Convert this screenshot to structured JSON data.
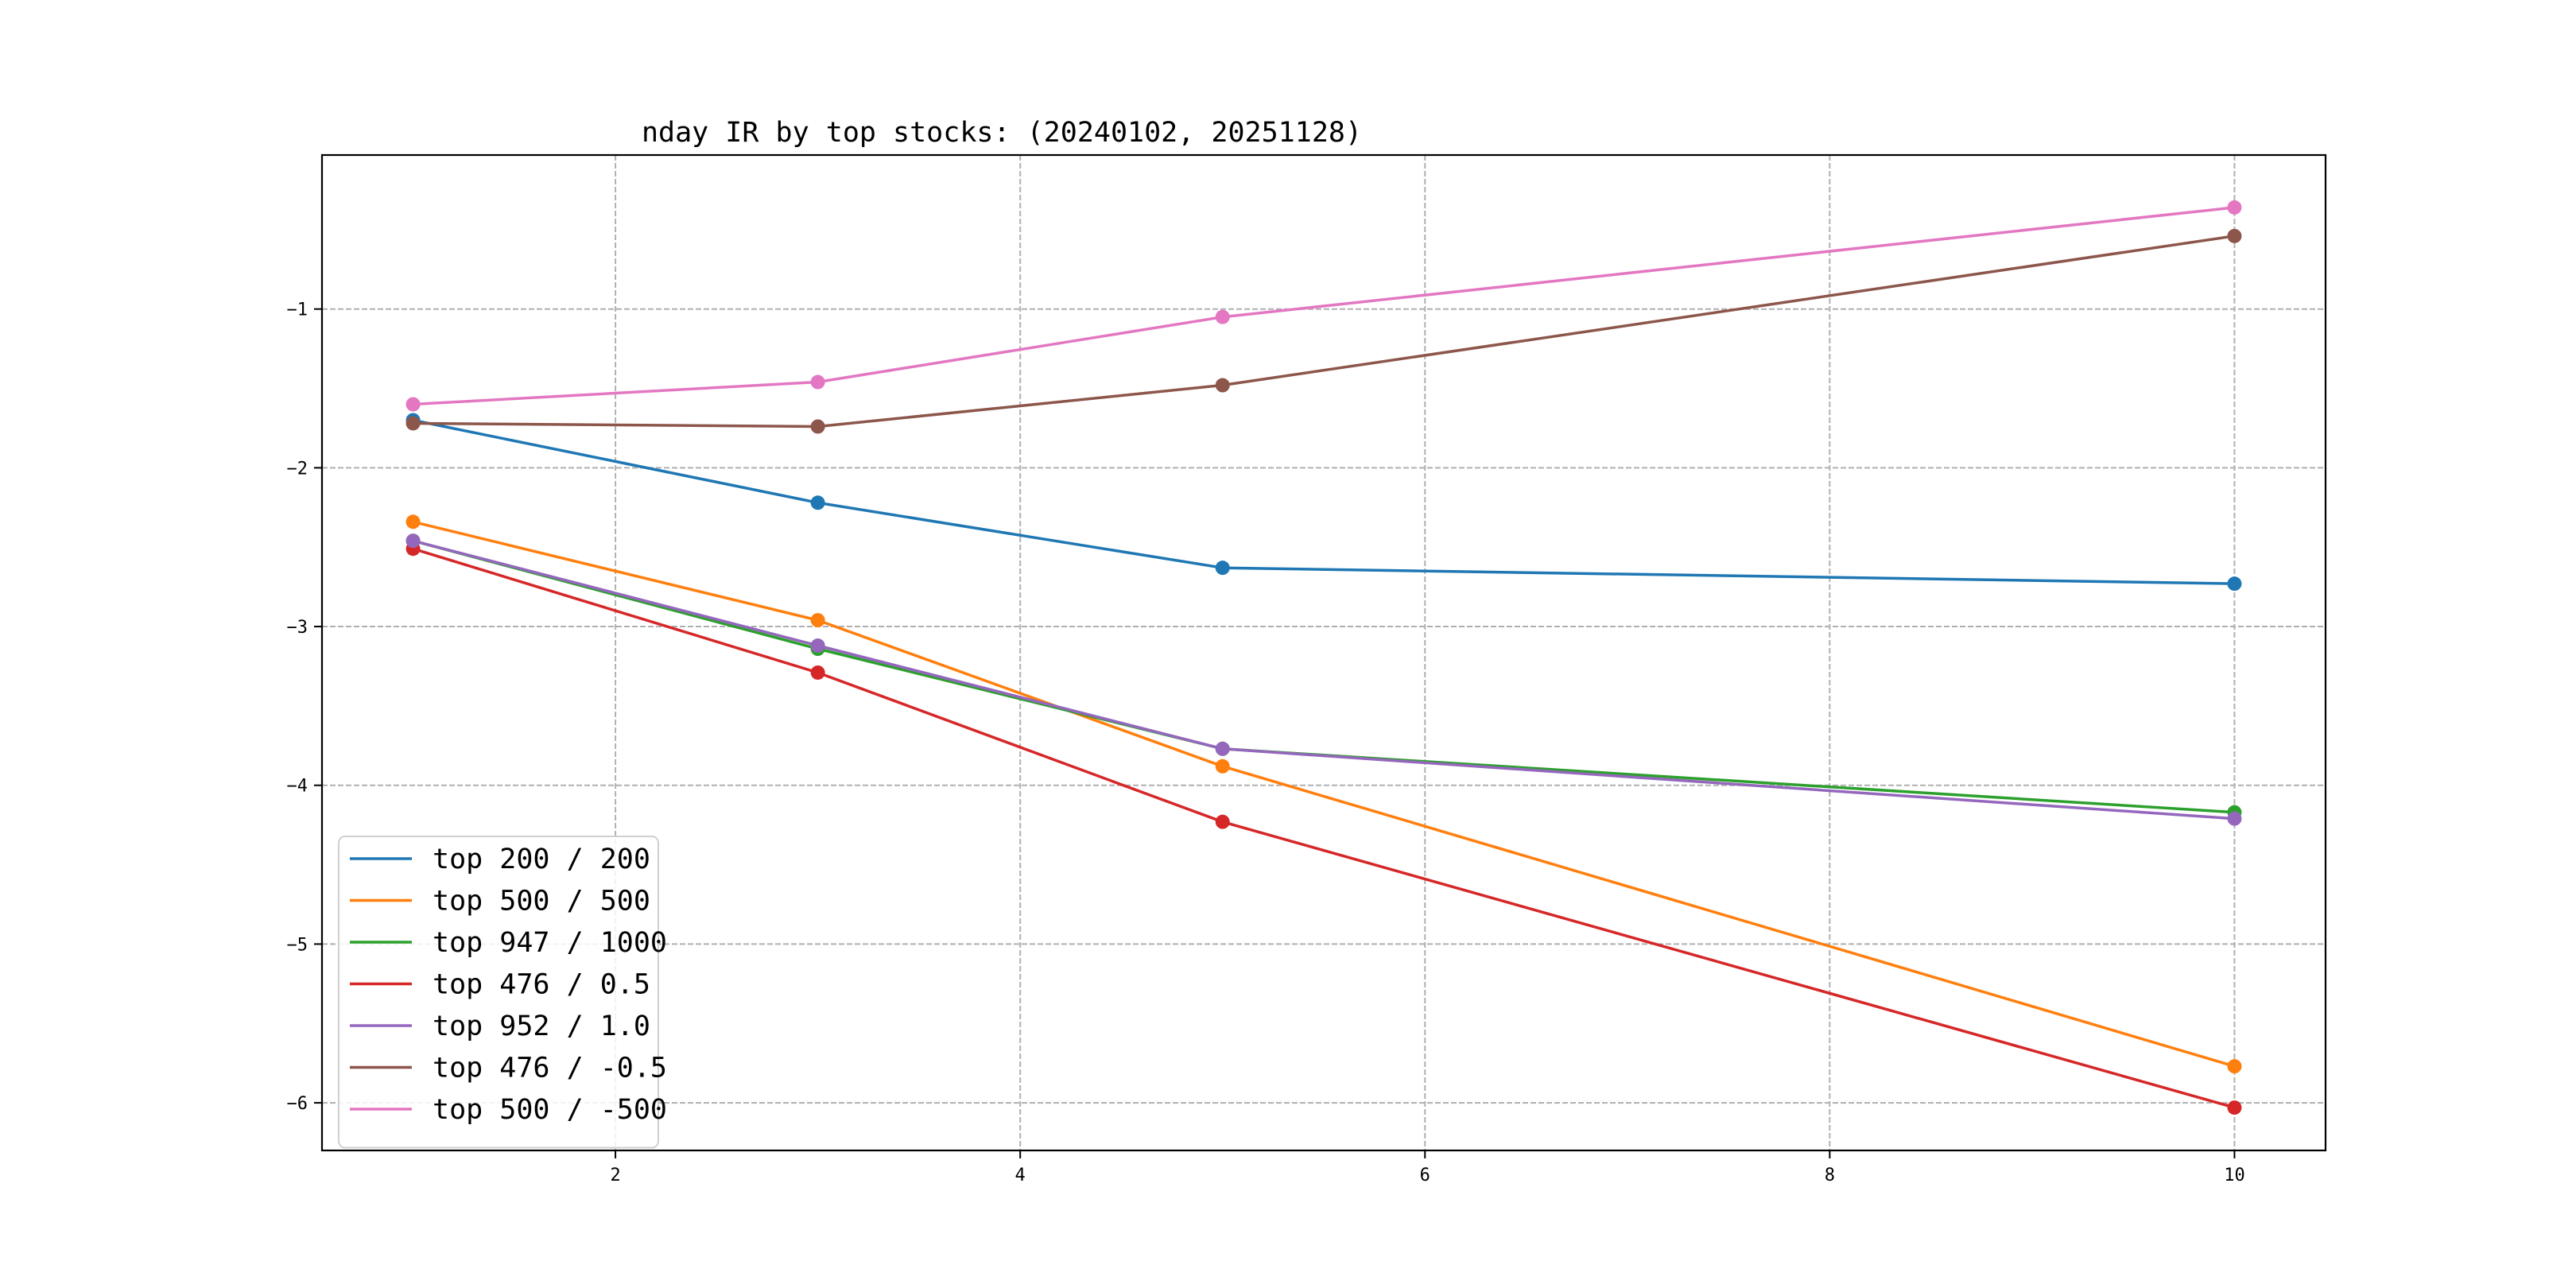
{
  "chart_data": {
    "type": "line",
    "title": "nday IR by top stocks: (20240102, 20251128)",
    "xlabel": "",
    "ylabel": "",
    "xlim": [
      0.55,
      10.45
    ],
    "ylim": [
      -6.3,
      -0.03
    ],
    "xticks": [
      2,
      4,
      6,
      8,
      10
    ],
    "yticks": [
      -1,
      -2,
      -3,
      -4,
      -5,
      -6
    ],
    "xtick_labels": [
      "2",
      "4",
      "6",
      "8",
      "10"
    ],
    "ytick_labels": [
      "−1",
      "−2",
      "−3",
      "−4",
      "−5",
      "−6"
    ],
    "grid": true,
    "legend_position": "lower-left",
    "x": [
      1,
      3,
      5,
      10
    ],
    "series": [
      {
        "name": "top 200 / 200",
        "color": "#1f77b4",
        "values": [
          -1.7,
          -2.22,
          -2.63,
          -2.73
        ]
      },
      {
        "name": "top 500 / 500",
        "color": "#ff7f0e",
        "values": [
          -2.34,
          -2.96,
          -3.88,
          -5.77
        ]
      },
      {
        "name": "top 947 / 1000",
        "color": "#2ca02c",
        "values": [
          -2.46,
          -3.14,
          -3.77,
          -4.17
        ]
      },
      {
        "name": "top 476 / 0.5",
        "color": "#d62728",
        "values": [
          -2.51,
          -3.29,
          -4.23,
          -6.03
        ]
      },
      {
        "name": "top 952 / 1.0",
        "color": "#9467bd",
        "values": [
          -2.46,
          -3.12,
          -3.77,
          -4.21
        ]
      },
      {
        "name": "top 476 / -0.5",
        "color": "#8c564b",
        "values": [
          -1.72,
          -1.74,
          -1.48,
          -0.54
        ]
      },
      {
        "name": "top 500 / -500",
        "color": "#e377c2",
        "values": [
          -1.6,
          -1.46,
          -1.05,
          -0.36
        ]
      }
    ]
  }
}
